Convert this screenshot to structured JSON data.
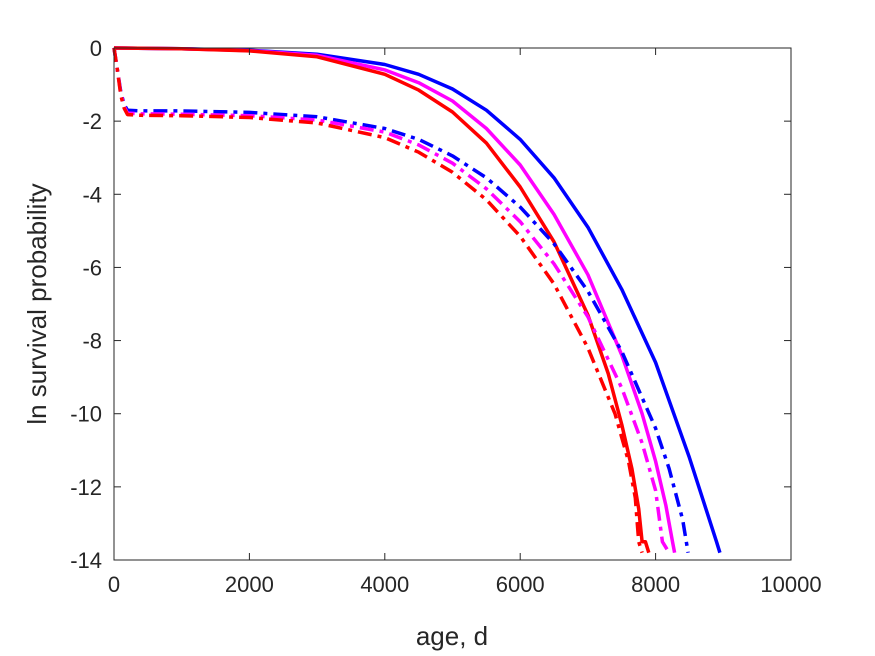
{
  "chart_data": {
    "type": "line",
    "title": "",
    "xlabel": "age, d",
    "ylabel": "ln survival probability",
    "xlim": [
      0,
      10000
    ],
    "ylim": [
      -14,
      0
    ],
    "xticks": [
      0,
      2000,
      4000,
      6000,
      8000,
      10000
    ],
    "yticks": [
      0,
      -2,
      -4,
      -6,
      -8,
      -10,
      -12,
      -14
    ],
    "grid": false,
    "legend": "none",
    "series": [
      {
        "color": "#0000ff",
        "style": "solid",
        "x": [
          0,
          1000,
          2000,
          3000,
          4000,
          4500,
          5000,
          5500,
          6000,
          6500,
          7000,
          7500,
          8000,
          8500,
          8900,
          8950
        ],
        "y": [
          0,
          -0.02,
          -0.06,
          -0.17,
          -0.45,
          -0.72,
          -1.12,
          -1.7,
          -2.5,
          -3.55,
          -4.9,
          -6.6,
          -8.6,
          -11.2,
          -13.5,
          -13.8
        ]
      },
      {
        "color": "#ff00ff",
        "style": "solid",
        "x": [
          0,
          1000,
          2000,
          3000,
          4000,
          4500,
          5000,
          5500,
          6000,
          6500,
          7000,
          7500,
          7800,
          8000,
          8150,
          8250,
          8280
        ],
        "y": [
          0,
          -0.02,
          -0.07,
          -0.2,
          -0.6,
          -0.95,
          -1.45,
          -2.2,
          -3.2,
          -4.55,
          -6.2,
          -8.4,
          -10.0,
          -11.3,
          -12.5,
          -13.5,
          -13.8
        ]
      },
      {
        "color": "#ff0000",
        "style": "solid",
        "x": [
          0,
          1000,
          2000,
          3000,
          4000,
          4500,
          5000,
          5500,
          6000,
          6500,
          7000,
          7300,
          7500,
          7650,
          7750,
          7800,
          7850,
          7900
        ],
        "y": [
          0,
          -0.02,
          -0.08,
          -0.24,
          -0.72,
          -1.15,
          -1.75,
          -2.6,
          -3.8,
          -5.3,
          -7.3,
          -8.9,
          -10.3,
          -11.5,
          -12.6,
          -13.5,
          -13.5,
          -13.8
        ]
      },
      {
        "color": "#0000ff",
        "style": "dashdot",
        "x": [
          0,
          50,
          100,
          150,
          200,
          400,
          1000,
          2000,
          3000,
          4000,
          4500,
          5000,
          5500,
          6000,
          6500,
          7000,
          7500,
          8000,
          8200,
          8400,
          8480
        ],
        "y": [
          0,
          -0.6,
          -1.2,
          -1.55,
          -1.7,
          -1.72,
          -1.72,
          -1.76,
          -1.88,
          -2.2,
          -2.5,
          -2.95,
          -3.55,
          -4.35,
          -5.35,
          -6.65,
          -8.3,
          -10.4,
          -11.5,
          -12.9,
          -13.8
        ]
      },
      {
        "color": "#ff00ff",
        "style": "dashdot",
        "x": [
          0,
          50,
          100,
          150,
          200,
          400,
          1000,
          2000,
          3000,
          4000,
          4500,
          5000,
          5500,
          6000,
          6500,
          7000,
          7500,
          7800,
          8000,
          8100,
          8200
        ],
        "y": [
          0,
          -0.6,
          -1.25,
          -1.6,
          -1.78,
          -1.8,
          -1.81,
          -1.85,
          -1.97,
          -2.3,
          -2.65,
          -3.15,
          -3.85,
          -4.75,
          -5.9,
          -7.35,
          -9.3,
          -10.8,
          -12.1,
          -13.5,
          -13.8
        ]
      },
      {
        "color": "#ff0000",
        "style": "dashdot",
        "x": [
          0,
          50,
          100,
          150,
          200,
          400,
          1000,
          2000,
          3000,
          4000,
          4500,
          5000,
          5500,
          6000,
          6500,
          7000,
          7400,
          7600,
          7700,
          7750,
          7800
        ],
        "y": [
          0,
          -0.6,
          -1.3,
          -1.65,
          -1.82,
          -1.84,
          -1.85,
          -1.9,
          -2.05,
          -2.45,
          -2.85,
          -3.4,
          -4.15,
          -5.15,
          -6.45,
          -8.2,
          -10.0,
          -11.3,
          -12.3,
          -13.5,
          -13.8
        ]
      }
    ]
  }
}
